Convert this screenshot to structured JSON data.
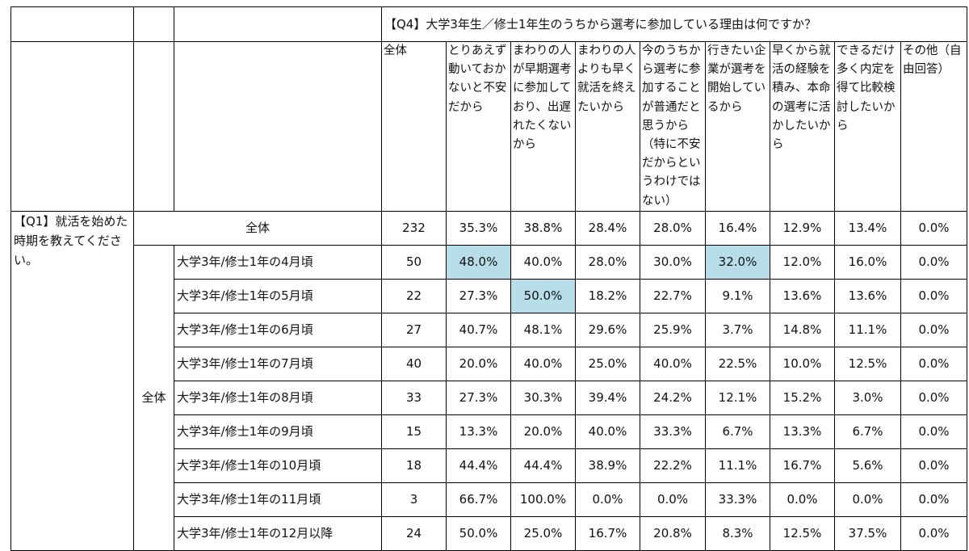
{
  "chart_data": {
    "type": "table",
    "question_label": "【Q4】大学3年生／修士1年生のうちから選考に参加している理由は何ですか？",
    "row_question": "【Q1】就活を始めた時期を教えてください。",
    "group_label": "全体",
    "columns": [
      "全体",
      "とりあえず動いておかないと不安だから",
      "まわりの人が早期選考に参加しており、出遅れたくないから",
      "まわりの人よりも早く就活を終えたいから",
      "今のうちから選考に参加することが普通だと思うから（特に不安だからというわけではない）",
      "行きたい企業が選考を開始しているから",
      "早くから就活の経験を積み、本命の選考に活かしたいから",
      "できるだけ多く内定を得て比較検討したいから",
      "その他（自由回答）"
    ],
    "total_row": {
      "label": "全体",
      "n": "232",
      "values": [
        "35.3%",
        "38.8%",
        "28.4%",
        "28.0%",
        "16.4%",
        "12.9%",
        "13.4%",
        "0.0%"
      ]
    },
    "rows": [
      {
        "label": "大学3年/修士1年の4月頃",
        "n": "50",
        "values": [
          "48.0%",
          "40.0%",
          "28.0%",
          "30.0%",
          "32.0%",
          "12.0%",
          "16.0%",
          "0.0%"
        ],
        "highlight": [
          0,
          4
        ]
      },
      {
        "label": "大学3年/修士1年の5月頃",
        "n": "22",
        "values": [
          "27.3%",
          "50.0%",
          "18.2%",
          "22.7%",
          "9.1%",
          "13.6%",
          "13.6%",
          "0.0%"
        ],
        "highlight": [
          1
        ]
      },
      {
        "label": "大学3年/修士1年の6月頃",
        "n": "27",
        "values": [
          "40.7%",
          "48.1%",
          "29.6%",
          "25.9%",
          "3.7%",
          "14.8%",
          "11.1%",
          "0.0%"
        ],
        "highlight": []
      },
      {
        "label": "大学3年/修士1年の7月頃",
        "n": "40",
        "values": [
          "20.0%",
          "40.0%",
          "25.0%",
          "40.0%",
          "22.5%",
          "10.0%",
          "12.5%",
          "0.0%"
        ],
        "highlight": []
      },
      {
        "label": "大学3年/修士1年の8月頃",
        "n": "33",
        "values": [
          "27.3%",
          "30.3%",
          "39.4%",
          "24.2%",
          "12.1%",
          "15.2%",
          "3.0%",
          "0.0%"
        ],
        "highlight": []
      },
      {
        "label": "大学3年/修士1年の9月頃",
        "n": "15",
        "values": [
          "13.3%",
          "20.0%",
          "40.0%",
          "33.3%",
          "6.7%",
          "13.3%",
          "6.7%",
          "0.0%"
        ],
        "highlight": []
      },
      {
        "label": "大学3年/修士1年の10月頃",
        "n": "18",
        "values": [
          "44.4%",
          "44.4%",
          "38.9%",
          "22.2%",
          "11.1%",
          "16.7%",
          "5.6%",
          "0.0%"
        ],
        "highlight": []
      },
      {
        "label": "大学3年/修士1年の11月頃",
        "n": "3",
        "values": [
          "66.7%",
          "100.0%",
          "0.0%",
          "0.0%",
          "33.3%",
          "0.0%",
          "0.0%",
          "0.0%"
        ],
        "highlight": []
      },
      {
        "label": "大学3年/修士1年の12月以降",
        "n": "24",
        "values": [
          "50.0%",
          "25.0%",
          "16.7%",
          "20.8%",
          "8.3%",
          "12.5%",
          "37.5%",
          "0.0%"
        ],
        "highlight": []
      }
    ],
    "highlight_color": "#b7dde8"
  }
}
